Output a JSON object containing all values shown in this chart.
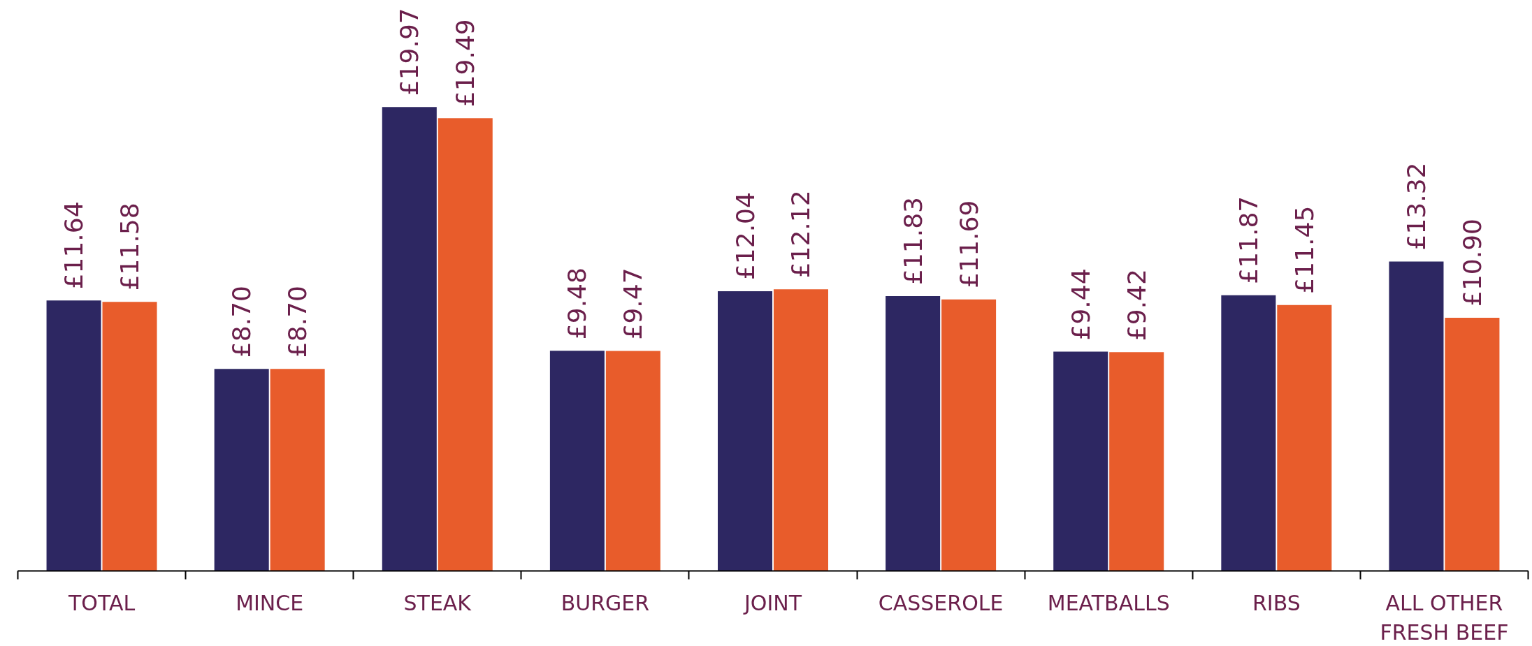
{
  "chart_data": {
    "type": "bar",
    "categories": [
      "TOTAL",
      "MINCE",
      "STEAK",
      "BURGER",
      "JOINT",
      "CASSEROLE",
      "MEATBALLS",
      "RIBS",
      "ALL OTHER FRESH BEEF"
    ],
    "series": [
      {
        "color": "#2d2762",
        "values": [
          11.64,
          8.7,
          19.97,
          9.48,
          12.04,
          11.83,
          9.44,
          11.87,
          13.32
        ],
        "value_labels": [
          "£11.64",
          "£8.70",
          "£19.97",
          "£9.48",
          "£12.04",
          "£11.83",
          "£9.44",
          "£11.87",
          "£13.32"
        ]
      },
      {
        "color": "#e85c2b",
        "values": [
          11.58,
          8.7,
          19.49,
          9.47,
          12.12,
          11.69,
          9.42,
          11.45,
          10.9
        ],
        "value_labels": [
          "£11.58",
          "£8.70",
          "£19.49",
          "£9.47",
          "£12.12",
          "£11.69",
          "£9.42",
          "£11.45",
          "£10.90"
        ]
      }
    ],
    "grid": false
  }
}
